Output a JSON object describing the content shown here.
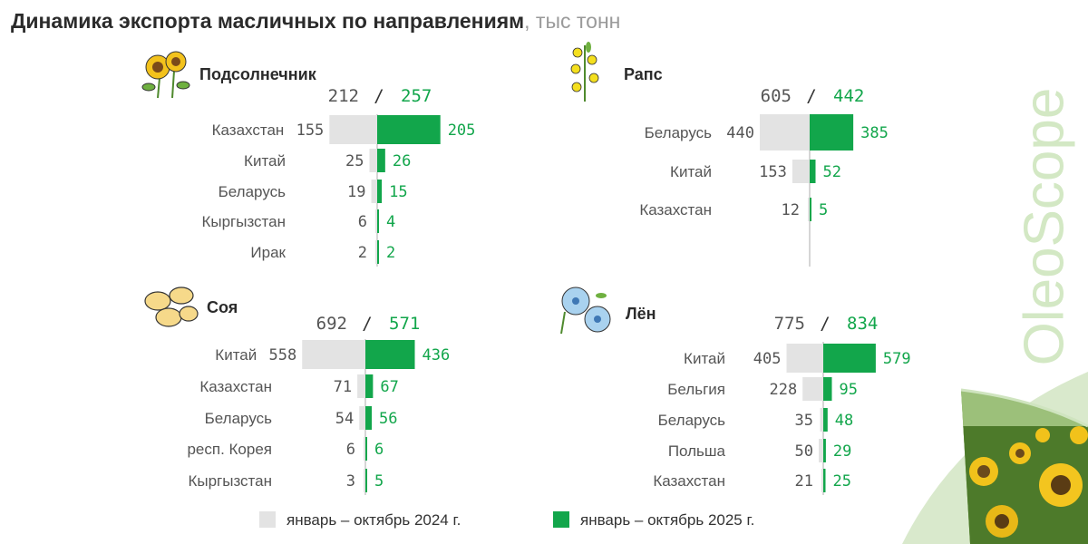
{
  "title": {
    "main": "Динамика экспорта масличных по направлениям",
    "unit": ", тыс тонн"
  },
  "brand": "OleoScope",
  "colors": {
    "y2024": "#e3e3e3",
    "y2025": "#12a64b",
    "axis": "#c9c9c9",
    "text": "#555555",
    "green_text": "#12a64b"
  },
  "legend": [
    {
      "label": "январь – октябрь 2024 г.",
      "color": "#e3e3e3"
    },
    {
      "label": "январь – октябрь 2025 г.",
      "color": "#12a64b"
    }
  ],
  "chart_data": [
    {
      "type": "bar",
      "title": "Подсолнечник",
      "icon": "sunflower-icon",
      "total_2024": "212",
      "total_2025": "257",
      "separator": "/",
      "categories": [
        "Казахстан",
        "Китай",
        "Беларусь",
        "Кыргызстан",
        "Ирак"
      ],
      "series": [
        {
          "name": "январь – октябрь 2024 г.",
          "values": [
            155,
            25,
            19,
            6,
            2
          ]
        },
        {
          "name": "январь – октябрь 2025 г.",
          "values": [
            205,
            26,
            15,
            4,
            2
          ]
        }
      ]
    },
    {
      "type": "bar",
      "title": "Рапс",
      "icon": "rapeseed-icon",
      "total_2024": "605",
      "total_2025": "442",
      "separator": "/",
      "categories": [
        "Беларусь",
        "Китай",
        "Казахстан"
      ],
      "series": [
        {
          "name": "январь – октябрь 2024 г.",
          "values": [
            440,
            153,
            12
          ]
        },
        {
          "name": "январь – октябрь 2025 г.",
          "values": [
            385,
            52,
            5
          ]
        }
      ]
    },
    {
      "type": "bar",
      "title": "Соя",
      "icon": "soybean-icon",
      "total_2024": "692",
      "total_2025": "571",
      "separator": "/",
      "categories": [
        "Китай",
        "Казахстан",
        "Беларусь",
        "респ. Корея",
        "Кыргызстан"
      ],
      "series": [
        {
          "name": "январь – октябрь 2024 г.",
          "values": [
            558,
            71,
            54,
            6,
            3
          ]
        },
        {
          "name": "январь – октябрь 2025 г.",
          "values": [
            436,
            67,
            56,
            6,
            5
          ]
        }
      ]
    },
    {
      "type": "bar",
      "title": "Лён",
      "icon": "flax-flower-icon",
      "total_2024": "775",
      "total_2025": "834",
      "separator": "/",
      "categories": [
        "Китай",
        "Бельгия",
        "Беларусь",
        "Польша",
        "Казахстан"
      ],
      "series": [
        {
          "name": "январь – октябрь 2024 г.",
          "values": [
            405,
            228,
            35,
            50,
            21
          ]
        },
        {
          "name": "январь – октябрь 2025 г.",
          "values": [
            579,
            95,
            48,
            29,
            25
          ]
        }
      ]
    }
  ]
}
